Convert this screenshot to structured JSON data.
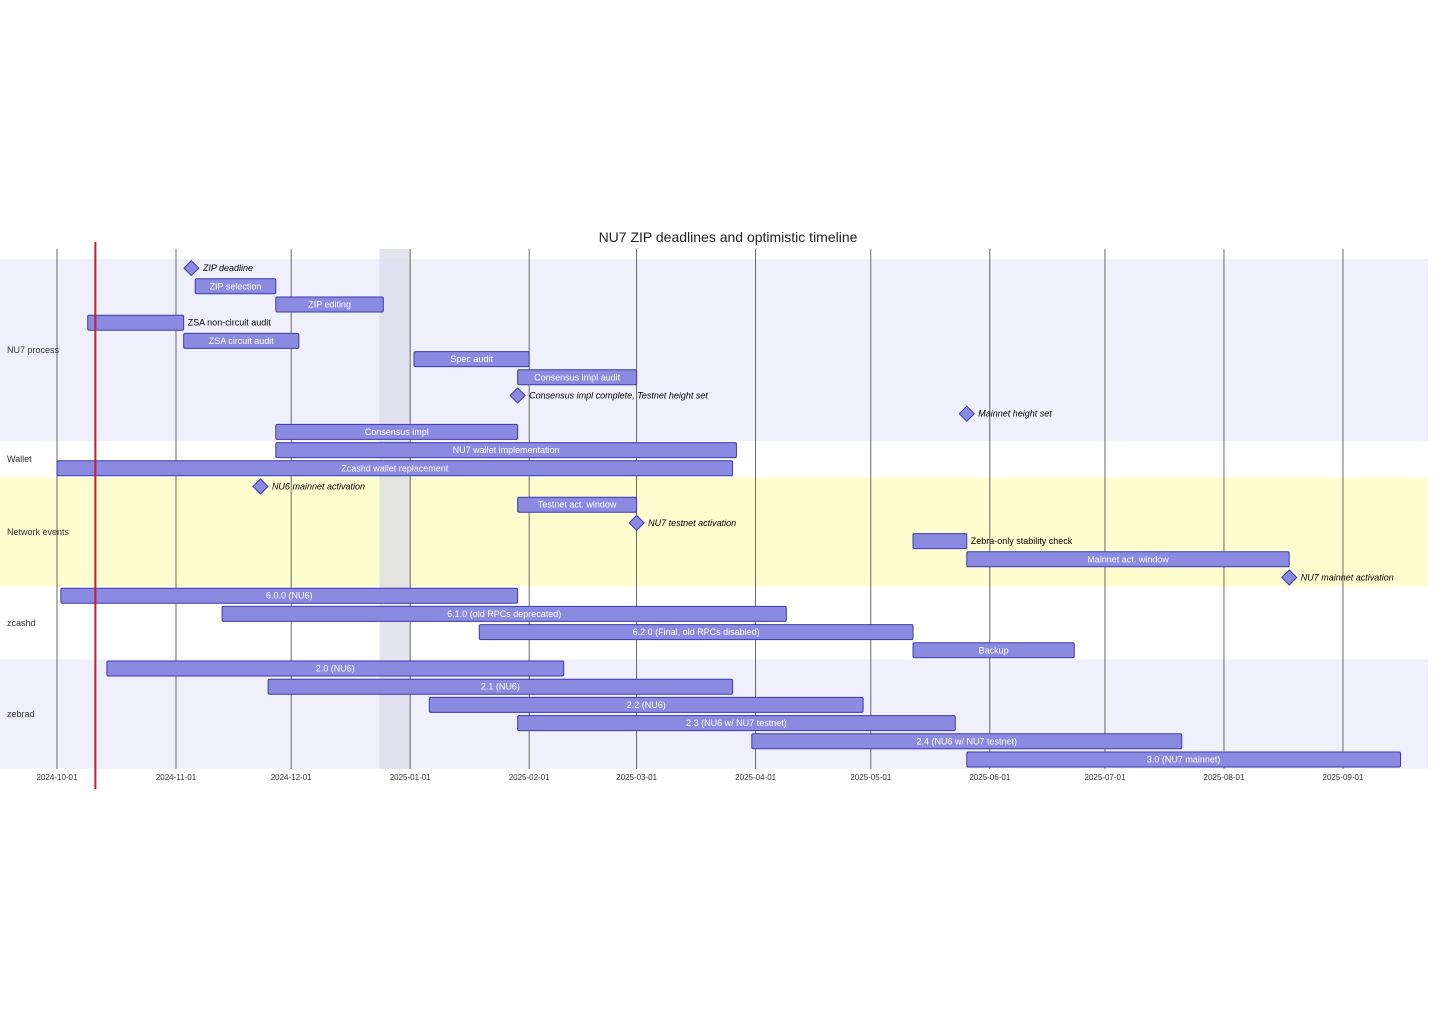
{
  "chart_data": {
    "type": "gantt",
    "title": "NU7 ZIP deadlines and optimistic timeline",
    "x_range": [
      "2024-09-01",
      "2025-09-19"
    ],
    "today_marker": "2024-10-11",
    "excluded_range": [
      "2024-12-24",
      "2025-01-01"
    ],
    "ticks": [
      "2024-10-01",
      "2024-11-01",
      "2024-12-01",
      "2025-01-01",
      "2025-02-01",
      "2025-03-01",
      "2025-04-01",
      "2025-05-01",
      "2025-06-01",
      "2025-07-01",
      "2025-08-01",
      "2025-09-01"
    ],
    "colors": {
      "bar_fill": "#8a8ae0",
      "bar_stroke": "#3a3ab0",
      "section_a": "#f0f0fc",
      "section_b": "#ffffff",
      "section_c": "#fffdd0",
      "today_line": "#c0202a",
      "excluded": "#d8d8e8",
      "grid": "#444444"
    },
    "sections": [
      {
        "name": "NU7 process",
        "color": "section_a",
        "tasks": [
          {
            "label": "ZIP deadline",
            "milestone": true,
            "date": "2024-11-05"
          },
          {
            "label": "ZIP selection",
            "start": "2024-11-06",
            "end": "2024-11-27"
          },
          {
            "label": "ZIP editing",
            "start": "2024-11-27",
            "end": "2024-12-25"
          },
          {
            "label": "ZSA non-circuit audit",
            "start": "2024-10-09",
            "end": "2024-11-03"
          },
          {
            "label": "ZSA circuit audit",
            "start": "2024-11-03",
            "end": "2024-12-03"
          },
          {
            "label": "Spec audit",
            "start": "2025-01-02",
            "end": "2025-02-01"
          },
          {
            "label": "Consensus impl audit",
            "start": "2025-01-29",
            "end": "2025-03-01"
          },
          {
            "label": "Consensus impl complete, Testnet height set",
            "milestone": true,
            "date": "2025-01-29"
          },
          {
            "label": "Mainnet height set",
            "milestone": true,
            "date": "2025-05-26"
          },
          {
            "label": "Consensus impl",
            "start": "2024-11-27",
            "end": "2025-01-29"
          }
        ]
      },
      {
        "name": "Wallet",
        "color": "section_b",
        "tasks": [
          {
            "label": "NU7 wallet implementation",
            "start": "2024-11-27",
            "end": "2025-03-27"
          },
          {
            "label": "Zcashd wallet replacement",
            "start": "2024-10-01",
            "end": "2025-03-26"
          }
        ]
      },
      {
        "name": "Network events",
        "color": "section_c",
        "tasks": [
          {
            "label": "NU6 mainnet activation",
            "milestone": true,
            "date": "2024-11-23"
          },
          {
            "label": "Testnet act. window",
            "start": "2025-01-29",
            "end": "2025-03-01"
          },
          {
            "label": "NU7 testnet activation",
            "milestone": true,
            "date": "2025-03-01"
          },
          {
            "label": "Zebra-only stability check",
            "start": "2025-05-12",
            "end": "2025-05-26"
          },
          {
            "label": "Mainnet act. window",
            "start": "2025-05-26",
            "end": "2025-08-18"
          },
          {
            "label": "NU7 mainnet activation",
            "milestone": true,
            "date": "2025-08-18"
          }
        ]
      },
      {
        "name": "zcashd",
        "color": "section_b",
        "tasks": [
          {
            "label": "6.0.0 (NU6)",
            "start": "2024-10-02",
            "end": "2025-01-29"
          },
          {
            "label": "6.1.0 (old RPCs deprecated)",
            "start": "2024-11-13",
            "end": "2025-04-09"
          },
          {
            "label": "6.2.0 (Final, old RPCs disabled)",
            "start": "2025-01-19",
            "end": "2025-05-12"
          },
          {
            "label": "Backup",
            "start": "2025-05-12",
            "end": "2025-06-23"
          }
        ]
      },
      {
        "name": "zebrad",
        "color": "section_a",
        "tasks": [
          {
            "label": "2.0 (NU6)",
            "start": "2024-10-14",
            "end": "2025-02-10"
          },
          {
            "label": "2.1 (NU6)",
            "start": "2024-11-25",
            "end": "2025-03-26"
          },
          {
            "label": "2.2 (NU6)",
            "start": "2025-01-06",
            "end": "2025-04-29"
          },
          {
            "label": "2.3 (NU6 w/ NU7 testnet)",
            "start": "2025-01-29",
            "end": "2025-05-23"
          },
          {
            "label": "2.4 (NU6 w/ NU7 testnet)",
            "start": "2025-03-31",
            "end": "2025-07-21"
          },
          {
            "label": "3.0 (NU7 mainnet)",
            "start": "2025-05-26",
            "end": "2025-09-16"
          }
        ]
      }
    ]
  }
}
